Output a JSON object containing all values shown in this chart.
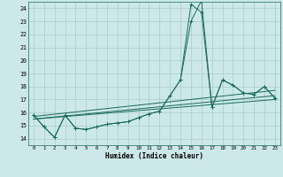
{
  "xlabel": "Humidex (Indice chaleur)",
  "bg_color": "#cce8e8",
  "grid_color": "#aacccc",
  "line_color": "#1a6b5a",
  "xlim": [
    -0.5,
    23.5
  ],
  "ylim": [
    13.5,
    24.5
  ],
  "yticks": [
    14,
    15,
    16,
    17,
    18,
    19,
    20,
    21,
    22,
    23,
    24
  ],
  "xticks": [
    0,
    1,
    2,
    3,
    4,
    5,
    6,
    7,
    8,
    9,
    10,
    11,
    12,
    13,
    14,
    15,
    16,
    17,
    18,
    19,
    20,
    21,
    22,
    23
  ],
  "series_1": {
    "x": [
      0,
      1,
      2,
      3,
      4,
      5,
      6,
      7,
      8,
      9,
      10,
      11,
      12,
      13,
      14,
      15,
      16,
      17,
      18,
      19,
      20,
      21,
      22,
      23
    ],
    "y": [
      15.8,
      14.9,
      14.1,
      15.8,
      14.8,
      14.7,
      14.9,
      15.1,
      15.2,
      15.3,
      15.6,
      15.9,
      16.1,
      17.3,
      18.5,
      23.0,
      24.6,
      16.4,
      18.5,
      18.1,
      17.5,
      17.4,
      18.0,
      17.1
    ]
  },
  "series_2": {
    "x": [
      0,
      1,
      2,
      3,
      4,
      5,
      6,
      7,
      8,
      9,
      10,
      11,
      12,
      13,
      14,
      15,
      16,
      17,
      18,
      19,
      20,
      21,
      22,
      23
    ],
    "y": [
      15.8,
      14.9,
      14.1,
      15.8,
      14.8,
      14.7,
      14.9,
      15.1,
      15.2,
      15.3,
      15.6,
      15.9,
      16.1,
      17.3,
      18.5,
      24.3,
      23.7,
      16.4,
      18.5,
      18.1,
      17.5,
      17.4,
      18.0,
      17.1
    ]
  },
  "trend_lines": [
    {
      "x": [
        0,
        23
      ],
      "y": [
        15.5,
        17.0
      ]
    },
    {
      "x": [
        0,
        23
      ],
      "y": [
        15.5,
        17.3
      ]
    },
    {
      "x": [
        0,
        23
      ],
      "y": [
        15.7,
        17.7
      ]
    }
  ]
}
